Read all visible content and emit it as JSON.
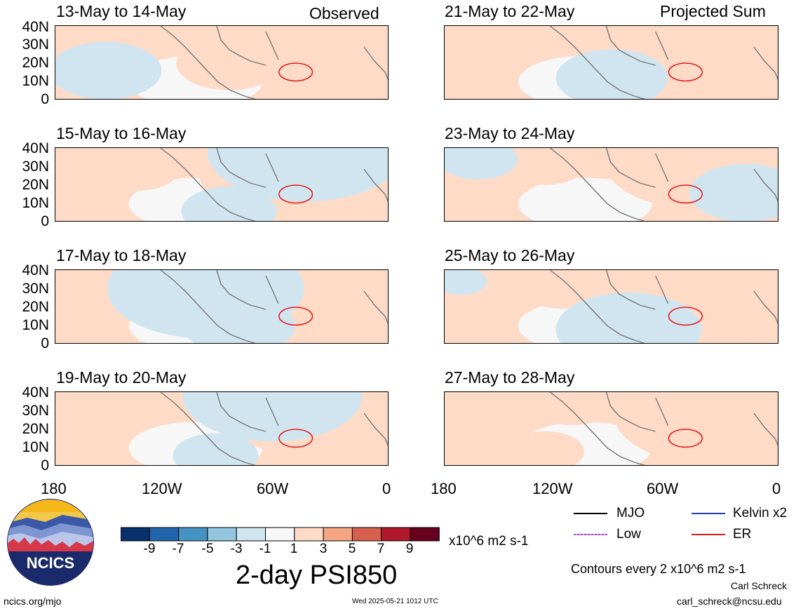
{
  "observed_label": "Observed",
  "projected_label": "Projected Sum",
  "panels_left": [
    {
      "title": "13-May to 14-May"
    },
    {
      "title": "15-May to 16-May"
    },
    {
      "title": "17-May to 18-May"
    },
    {
      "title": "19-May to 20-May"
    }
  ],
  "panels_right": [
    {
      "title": "21-May to 22-May"
    },
    {
      "title": "23-May to 24-May"
    },
    {
      "title": "25-May to 26-May"
    },
    {
      "title": "27-May to 28-May"
    }
  ],
  "lat_labels": [
    "40N",
    "30N",
    "20N",
    "10N",
    "0"
  ],
  "lon_labels": [
    "180",
    "120W",
    "60W",
    "0"
  ],
  "colorbar": {
    "colors": [
      "#08306b",
      "#2166ac",
      "#4393c3",
      "#92c5de",
      "#d1e5f0",
      "#f7f7f7",
      "#fddbc7",
      "#f4a582",
      "#d6604d",
      "#b2182b",
      "#67001f"
    ],
    "labels": [
      "-9",
      "-7",
      "-5",
      "-3",
      "-1",
      "1",
      "3",
      "5",
      "7",
      "9"
    ],
    "units": "x10^6 m2 s-1"
  },
  "plot_title": "2-day PSI850",
  "legend": {
    "mjo": "MJO",
    "kelvin": "Kelvin x2",
    "low": "Low",
    "er": "ER",
    "mjo_color": "#000000",
    "kelvin_color": "#1f3fbf",
    "low_color": "#9b4fd6",
    "er_color": "#e31a1c"
  },
  "contour_note": "Contours every 2 x10^6 m2 s-1",
  "author": "Carl Schreck",
  "email": "carl_schreck@ncsu.edu",
  "website": "ncics.org/mjo",
  "timestamp": "Wed 2025-05-21 1012 UTC",
  "logo_text": "NCICS"
}
